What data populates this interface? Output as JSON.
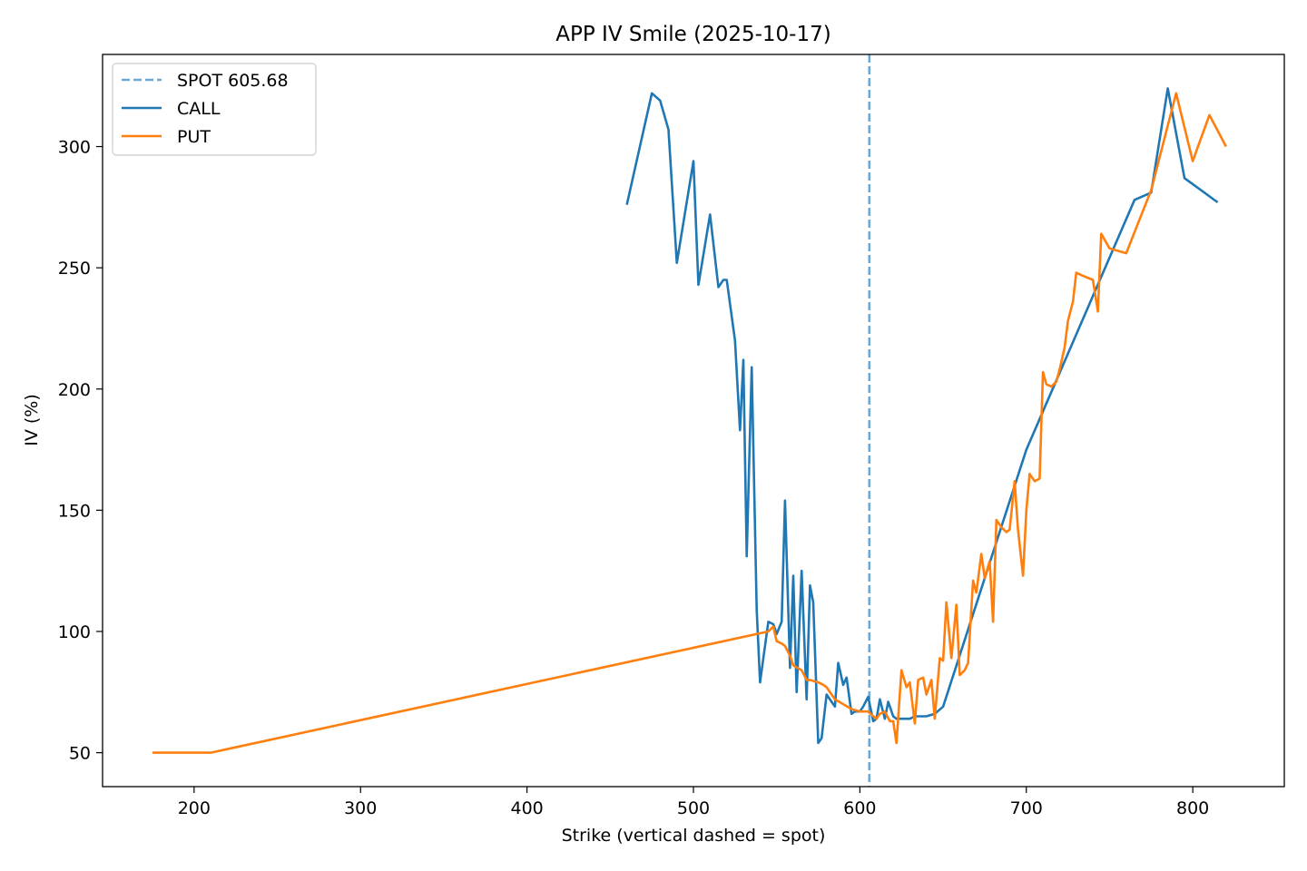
{
  "chart_data": {
    "type": "line",
    "title": "APP IV Smile (2025-10-17)",
    "xlabel": "Strike (vertical dashed = spot)",
    "ylabel": "IV (%)",
    "xlim": [
      145,
      855
    ],
    "ylim": [
      36,
      338
    ],
    "xticks": [
      200,
      300,
      400,
      500,
      600,
      700,
      800
    ],
    "yticks": [
      50,
      100,
      150,
      200,
      250,
      300
    ],
    "grid": false,
    "legend_position": "top-left",
    "spot": {
      "label": "SPOT 605.68",
      "value": 605.68,
      "color": "#6fa8d2"
    },
    "series": [
      {
        "name": "CALL",
        "color": "#1f77b4",
        "x": [
          460,
          475,
          480,
          485,
          490,
          500,
          503,
          510,
          515,
          518,
          520,
          525,
          528,
          530,
          532,
          535,
          538,
          540,
          545,
          548,
          550,
          553,
          555,
          558,
          560,
          562,
          565,
          568,
          570,
          572,
          575,
          577,
          580,
          583,
          585,
          587,
          590,
          592,
          595,
          597,
          600,
          602,
          605,
          608,
          610,
          612,
          615,
          617,
          620,
          622,
          625,
          628,
          630,
          633,
          635,
          638,
          640,
          645,
          650,
          700,
          765,
          775,
          785,
          795,
          815
        ],
        "y": [
          276,
          322,
          319,
          307,
          252,
          294,
          243,
          272,
          242,
          245,
          245,
          220,
          183,
          212,
          131,
          209,
          109,
          79,
          104,
          103,
          99,
          104,
          154,
          85,
          123,
          75,
          125,
          72,
          119,
          112,
          54,
          56,
          74,
          71,
          69,
          87,
          78,
          81,
          66,
          67,
          67,
          69,
          73,
          63,
          64,
          72,
          64,
          71,
          65,
          64,
          64,
          64,
          64,
          65,
          65,
          65,
          65,
          66,
          69,
          175,
          278,
          281,
          324,
          287,
          277
        ]
      },
      {
        "name": "PUT",
        "color": "#ff7f0e",
        "x": [
          175,
          210,
          545,
          548,
          550,
          553,
          555,
          558,
          560,
          565,
          568,
          570,
          575,
          578,
          580,
          583,
          585,
          590,
          595,
          600,
          605,
          608,
          610,
          612,
          615,
          618,
          620,
          622,
          625,
          628,
          630,
          633,
          635,
          638,
          640,
          643,
          645,
          648,
          650,
          652,
          655,
          658,
          660,
          663,
          665,
          668,
          670,
          673,
          675,
          678,
          680,
          682,
          685,
          688,
          690,
          693,
          695,
          698,
          700,
          702,
          705,
          708,
          710,
          712,
          715,
          718,
          720,
          723,
          725,
          728,
          730,
          733,
          740,
          743,
          745,
          750,
          760,
          775,
          790,
          800,
          810,
          820
        ],
        "y": [
          50,
          50,
          100,
          102,
          96,
          95,
          94,
          90,
          86,
          84,
          80,
          80,
          79,
          78,
          77,
          74,
          72,
          70,
          68,
          67,
          67,
          65,
          64,
          66,
          67,
          63,
          63,
          54,
          84,
          77,
          79,
          62,
          80,
          81,
          74,
          80,
          64,
          89,
          88,
          112,
          89,
          111,
          82,
          84,
          87,
          121,
          116,
          132,
          122,
          129,
          104,
          146,
          143,
          141,
          142,
          162,
          142,
          123,
          150,
          165,
          162,
          163,
          207,
          202,
          201,
          203,
          208,
          217,
          228,
          236,
          248,
          247,
          245,
          232,
          264,
          258,
          256,
          282,
          322,
          294,
          313,
          300
        ]
      }
    ]
  }
}
